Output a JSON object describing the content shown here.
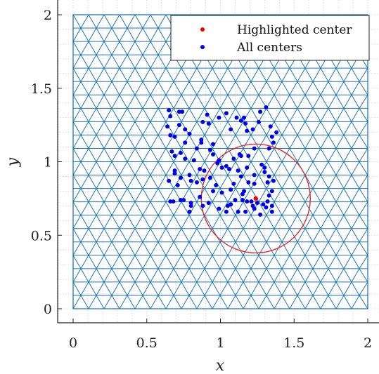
{
  "chart_data": {
    "type": "scatter",
    "xlabel": "x",
    "ylabel": "y",
    "xlim": [
      -0.1,
      2.0
    ],
    "ylim": [
      -0.1,
      2.0
    ],
    "xticks": [
      {
        "value": 0,
        "label": "0"
      },
      {
        "value": 0.5,
        "label": "0.5"
      },
      {
        "value": 1,
        "label": "1"
      },
      {
        "value": 1.5,
        "label": "1.5"
      },
      {
        "value": 2,
        "label": "2"
      }
    ],
    "yticks": [
      {
        "value": 0,
        "label": "0"
      },
      {
        "value": 0.5,
        "label": "0.5"
      },
      {
        "value": 1,
        "label": "1"
      },
      {
        "value": 1.5,
        "label": "1.5"
      },
      {
        "value": 2,
        "label": "2"
      }
    ],
    "minor_grid": true,
    "legend_position": "top-right",
    "colors": {
      "mesh": "#1f77b4",
      "centers": "#0000ee",
      "highlight": "#ff0000",
      "circle": "#e8262b"
    },
    "mesh": {
      "domain": {
        "x": [
          0,
          2
        ],
        "y": [
          0,
          2
        ]
      },
      "element": "triangle",
      "approx_spacing": 0.1
    },
    "series": [
      {
        "name": "Highlighted center",
        "marker": "dot",
        "color": "#ff0000",
        "points": [
          [
            1.24,
            0.75
          ]
        ]
      },
      {
        "name": "All centers",
        "marker": "dot",
        "color": "#0000ee",
        "points": [
          [
            0.65,
            1.35
          ],
          [
            0.66,
            1.31
          ],
          [
            0.72,
            1.34
          ],
          [
            0.74,
            1.34
          ],
          [
            0.64,
            1.24
          ],
          [
            0.72,
            1.25
          ],
          [
            0.76,
            1.22
          ],
          [
            0.66,
            1.18
          ],
          [
            0.69,
            1.17
          ],
          [
            0.79,
            1.19
          ],
          [
            0.88,
            1.27
          ],
          [
            0.91,
            1.32
          ],
          [
            0.92,
            1.26
          ],
          [
            0.87,
            1.15
          ],
          [
            0.99,
            1.3
          ],
          [
            1.04,
            1.33
          ],
          [
            1.07,
            1.22
          ],
          [
            1.11,
            1.3
          ],
          [
            1.14,
            1.28
          ],
          [
            1.17,
            1.26
          ],
          [
            1.18,
            1.21
          ],
          [
            1.16,
            1.3
          ],
          [
            1.22,
            1.22
          ],
          [
            1.26,
            1.27
          ],
          [
            1.27,
            1.34
          ],
          [
            1.31,
            1.37
          ],
          [
            1.34,
            1.24
          ],
          [
            1.35,
            1.17
          ],
          [
            1.38,
            1.2
          ],
          [
            1.36,
            1.13
          ],
          [
            1.33,
            1.09
          ],
          [
            1.23,
            1.09
          ],
          [
            1.19,
            1.04
          ],
          [
            1.14,
            1.04
          ],
          [
            1.09,
            1.02
          ],
          [
            1.06,
            0.95
          ],
          [
            1.04,
            0.97
          ],
          [
            1.01,
            0.96
          ],
          [
            0.98,
            0.99
          ],
          [
            0.99,
            1.01
          ],
          [
            0.95,
            1.05
          ],
          [
            0.93,
            1.08
          ],
          [
            0.95,
            1.12
          ],
          [
            0.87,
            1.13
          ],
          [
            0.84,
            1.09
          ],
          [
            0.76,
            1.13
          ],
          [
            0.73,
            1.06
          ],
          [
            0.67,
            1.07
          ],
          [
            0.69,
            1.04
          ],
          [
            0.76,
            1.02
          ],
          [
            0.82,
            1.01
          ],
          [
            0.89,
            0.94
          ],
          [
            0.86,
            0.95
          ],
          [
            0.69,
            0.94
          ],
          [
            0.69,
            0.92
          ],
          [
            0.79,
            0.91
          ],
          [
            0.73,
            0.89
          ],
          [
            0.65,
            0.87
          ],
          [
            0.71,
            0.84
          ],
          [
            0.8,
            0.87
          ],
          [
            0.84,
            0.86
          ],
          [
            0.88,
            0.88
          ],
          [
            0.93,
            0.89
          ],
          [
            0.97,
            0.84
          ],
          [
            0.95,
            0.8
          ],
          [
            1.01,
            0.79
          ],
          [
            1.07,
            0.81
          ],
          [
            1.09,
            0.85
          ],
          [
            1.16,
            0.8
          ],
          [
            1.19,
            0.86
          ],
          [
            1.23,
            0.85
          ],
          [
            1.23,
            0.91
          ],
          [
            1.28,
            0.98
          ],
          [
            1.3,
            0.96
          ],
          [
            1.3,
            0.93
          ],
          [
            1.33,
            0.9
          ],
          [
            1.36,
            0.87
          ],
          [
            1.32,
            0.86
          ],
          [
            1.35,
            0.8
          ],
          [
            1.33,
            0.77
          ],
          [
            1.32,
            0.73
          ],
          [
            1.29,
            0.71
          ],
          [
            1.25,
            0.72
          ],
          [
            1.21,
            0.73
          ],
          [
            1.18,
            0.73
          ],
          [
            1.15,
            0.74
          ],
          [
            1.15,
            0.78
          ],
          [
            1.1,
            0.74
          ],
          [
            1.07,
            0.71
          ],
          [
            1.05,
            0.7
          ],
          [
            0.99,
            0.68
          ],
          [
            1.04,
            0.66
          ],
          [
            1.12,
            0.66
          ],
          [
            1.17,
            0.66
          ],
          [
            1.22,
            0.7
          ],
          [
            1.23,
            0.68
          ],
          [
            1.27,
            0.64
          ],
          [
            1.31,
            0.69
          ],
          [
            1.35,
            0.66
          ],
          [
            1.35,
            0.7
          ],
          [
            0.86,
            0.76
          ],
          [
            0.88,
            0.7
          ],
          [
            0.8,
            0.72
          ],
          [
            0.79,
            0.66
          ],
          [
            0.73,
            0.74
          ],
          [
            0.68,
            0.73
          ],
          [
            0.66,
            0.73
          ],
          [
            0.8,
            0.7
          ],
          [
            0.75,
            0.74
          ],
          [
            0.92,
            0.72
          ],
          [
            1.13,
            1.05
          ],
          [
            1.12,
            0.94
          ],
          [
            1.18,
            0.96
          ],
          [
            1.14,
            0.9
          ]
        ]
      }
    ],
    "annotations": [
      {
        "type": "circle",
        "center": [
          1.24,
          0.75
        ],
        "radius": 0.37,
        "color": "#e8262b"
      }
    ]
  },
  "legend": {
    "items": [
      {
        "label": "Highlighted center",
        "color": "#ff0000"
      },
      {
        "label": "All centers",
        "color": "#0000ee"
      }
    ]
  }
}
